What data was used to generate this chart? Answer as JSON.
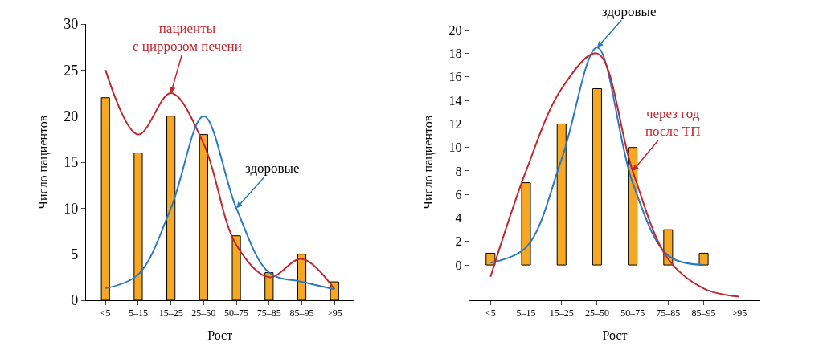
{
  "chart_data": [
    {
      "type": "bar",
      "xlabel": "Рост",
      "ylabel": "Число пациентов",
      "categories": [
        "<5",
        "5–15",
        "15–25",
        "25–50",
        "50–75",
        "75–85",
        "85–95",
        ">95"
      ],
      "ylim": [
        0,
        30
      ],
      "yticks": [
        0,
        5,
        10,
        15,
        20,
        25,
        30
      ],
      "series": [
        {
          "color": "#f7a823",
          "values": [
            22,
            16,
            20,
            18,
            7,
            3,
            5,
            2
          ]
        },
        {
          "type": "line",
          "name": "пациенты\nс циррозом печени",
          "color": "#c0262d",
          "values": [
            25,
            18,
            22.5,
            17,
            6,
            2.5,
            4.5,
            1.2
          ]
        },
        {
          "type": "line",
          "name": "здоровые",
          "color": "#2b78c2",
          "values": [
            1.3,
            2.8,
            10,
            20,
            10,
            3,
            2,
            1.2
          ]
        }
      ]
    },
    {
      "type": "bar",
      "xlabel": "Рост",
      "ylabel": "Число пациентов",
      "categories": [
        "<5",
        "5–15",
        "15–25",
        "25–50",
        "50–75",
        "75–85",
        "85–95",
        ">95"
      ],
      "ylim": [
        -3,
        20.5
      ],
      "yticks": [
        0,
        2,
        4,
        6,
        8,
        10,
        12,
        14,
        16,
        18,
        20
      ],
      "series": [
        {
          "color": "#f7a823",
          "values": [
            1,
            7,
            12,
            15,
            10,
            3,
            1,
            null
          ]
        },
        {
          "type": "line",
          "name": "здоровые",
          "color": "#2b78c2",
          "values": [
            0.2,
            1.5,
            9,
            18.5,
            7,
            0.8,
            0,
            null
          ]
        },
        {
          "type": "line",
          "name": "через год\nпосле ТП",
          "color": "#c0262d",
          "values": [
            -1,
            8,
            15,
            18,
            8,
            0.5,
            -2,
            -2.7
          ]
        }
      ]
    }
  ]
}
